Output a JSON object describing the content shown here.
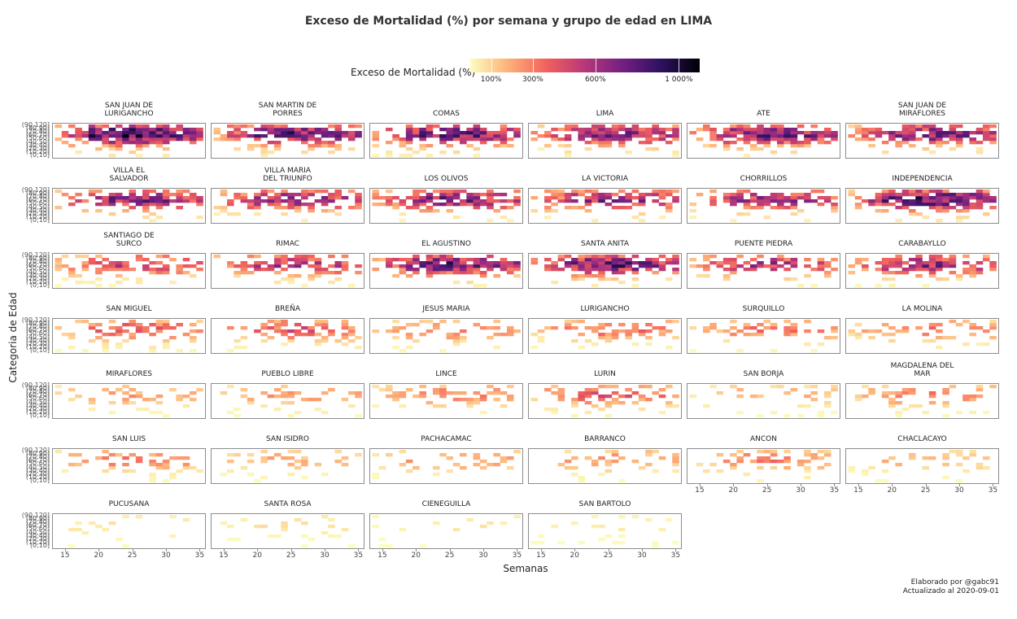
{
  "title": "Exceso de Mortalidad (%) por semana y grupo de edad en LIMA",
  "legend": {
    "title": "Exceso de Mortalidad (%)",
    "ticks": [
      {
        "label": "100%",
        "value": 100
      },
      {
        "label": "300%",
        "value": 300
      },
      {
        "label": "600%",
        "value": 600
      },
      {
        "label": "1 000%",
        "value": 1000
      }
    ],
    "colors": [
      "#fcfdbf",
      "#feb078",
      "#f1605d",
      "#b73779",
      "#721f81",
      "#2c115f",
      "#000004"
    ]
  },
  "xlabel": "Semanas",
  "ylabel": "Categoria de Edad",
  "credit": {
    "line1": "Elaborado por @gabc91",
    "line2": "Actualizado al 2020-09-01"
  },
  "chart_data": {
    "type": "heatmap",
    "x_ticks": [
      15,
      20,
      25,
      30,
      35
    ],
    "x_range": [
      14,
      35
    ],
    "age_groups": [
      "(0,10]",
      "(10,20]",
      "(20,30]",
      "(30,40]",
      "(40,50]",
      "(50,60]",
      "(60,70]",
      "(70,80]",
      "(80,90]",
      "(90,120]"
    ],
    "y_tick_labels": [
      "(90,120]",
      "(80,90]",
      "(70,80]",
      "(60,70]",
      "(50,60]",
      "(40,50]",
      "(30,40]",
      "(20,30]",
      "(10,20]",
      "(0,10]"
    ],
    "panels": [
      {
        "name": "SAN JUAN DE\nLURIGANCHO",
        "intensity": 0.95
      },
      {
        "name": "SAN MARTIN DE\nPORRES",
        "intensity": 0.8
      },
      {
        "name": "COMAS",
        "intensity": 0.78
      },
      {
        "name": "LIMA",
        "intensity": 0.72
      },
      {
        "name": "ATE",
        "intensity": 0.78
      },
      {
        "name": "SAN JUAN DE\nMIRAFLORES",
        "intensity": 0.72
      },
      {
        "name": "VILLA EL\nSALVADOR",
        "intensity": 0.7
      },
      {
        "name": "VILLA MARIA\nDEL TRIUNFO",
        "intensity": 0.68
      },
      {
        "name": "LOS OLIVOS",
        "intensity": 0.72
      },
      {
        "name": "LA VICTORIA",
        "intensity": 0.65
      },
      {
        "name": "CHORRILLOS",
        "intensity": 0.62
      },
      {
        "name": "INDEPENDENCIA",
        "intensity": 0.85
      },
      {
        "name": "SANTIAGO DE\nSURCO",
        "intensity": 0.5
      },
      {
        "name": "RIMAC",
        "intensity": 0.6
      },
      {
        "name": "EL AGUSTINO",
        "intensity": 0.78
      },
      {
        "name": "SANTA ANITA",
        "intensity": 0.78
      },
      {
        "name": "PUENTE PIEDRA",
        "intensity": 0.6
      },
      {
        "name": "CARABAYLLO",
        "intensity": 0.65
      },
      {
        "name": "SAN MIGUEL",
        "intensity": 0.42
      },
      {
        "name": "BREÑA",
        "intensity": 0.42
      },
      {
        "name": "JESUS MARIA",
        "intensity": 0.32
      },
      {
        "name": "LURIGANCHO",
        "intensity": 0.35
      },
      {
        "name": "SURQUILLO",
        "intensity": 0.32
      },
      {
        "name": "LA MOLINA",
        "intensity": 0.32
      },
      {
        "name": "MIRAFLORES",
        "intensity": 0.22
      },
      {
        "name": "PUEBLO LIBRE",
        "intensity": 0.25
      },
      {
        "name": "LINCE",
        "intensity": 0.3
      },
      {
        "name": "LURIN",
        "intensity": 0.4
      },
      {
        "name": "SAN BORJA",
        "intensity": 0.18
      },
      {
        "name": "MAGDALENA DEL\nMAR",
        "intensity": 0.3
      },
      {
        "name": "SAN LUIS",
        "intensity": 0.3
      },
      {
        "name": "SAN ISIDRO",
        "intensity": 0.2
      },
      {
        "name": "PACHACAMAC",
        "intensity": 0.25
      },
      {
        "name": "BARRANCO",
        "intensity": 0.25
      },
      {
        "name": "ANCON",
        "intensity": 0.3
      },
      {
        "name": "CHACLACAYO",
        "intensity": 0.18
      },
      {
        "name": "PUCUSANA",
        "intensity": 0.08
      },
      {
        "name": "SANTA ROSA",
        "intensity": 0.07
      },
      {
        "name": "CIENEGUILLA",
        "intensity": 0.06
      },
      {
        "name": "SAN BARTOLO",
        "intensity": 0.05
      }
    ]
  }
}
